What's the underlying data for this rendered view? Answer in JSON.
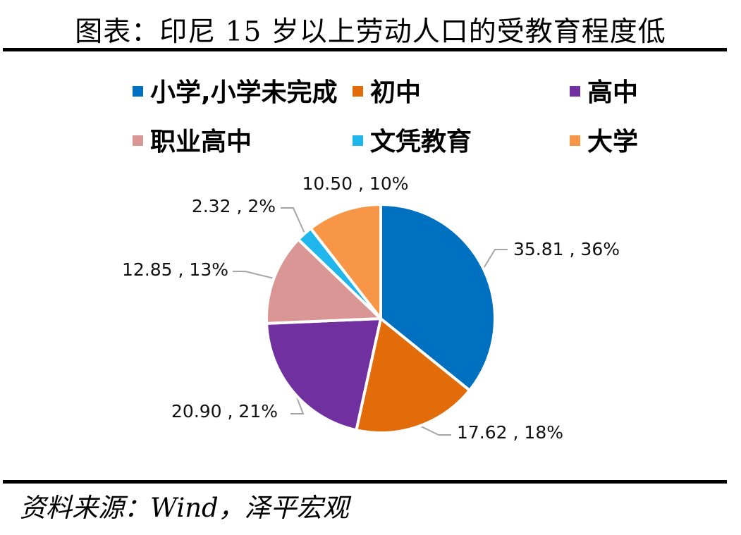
{
  "header": {
    "title": "图表：印尼 15 岁以上劳动人口的受教育程度低"
  },
  "footer": {
    "source": "资料来源：Wind，泽平宏观"
  },
  "chart_data": {
    "type": "pie",
    "title": "",
    "legend_position": "top",
    "categories": [
      "小学,小学未完成",
      "初中",
      "高中",
      "职业高中",
      "文凭教育",
      "大学"
    ],
    "values": [
      35.81,
      17.62,
      20.9,
      12.85,
      2.32,
      10.5
    ],
    "percents": [
      "36%",
      "18%",
      "21%",
      "13%",
      "2%",
      "10%"
    ],
    "data_labels": [
      "35.81 , 36%",
      "17.62 , 18%",
      "20.90 , 21%",
      "12.85 , 13%",
      "2.32 , 2%",
      "10.50 , 10%"
    ],
    "colors": [
      "#0070C0",
      "#E36C0A",
      "#7030A0",
      "#DA9694",
      "#1FB6EC",
      "#F79646"
    ]
  }
}
